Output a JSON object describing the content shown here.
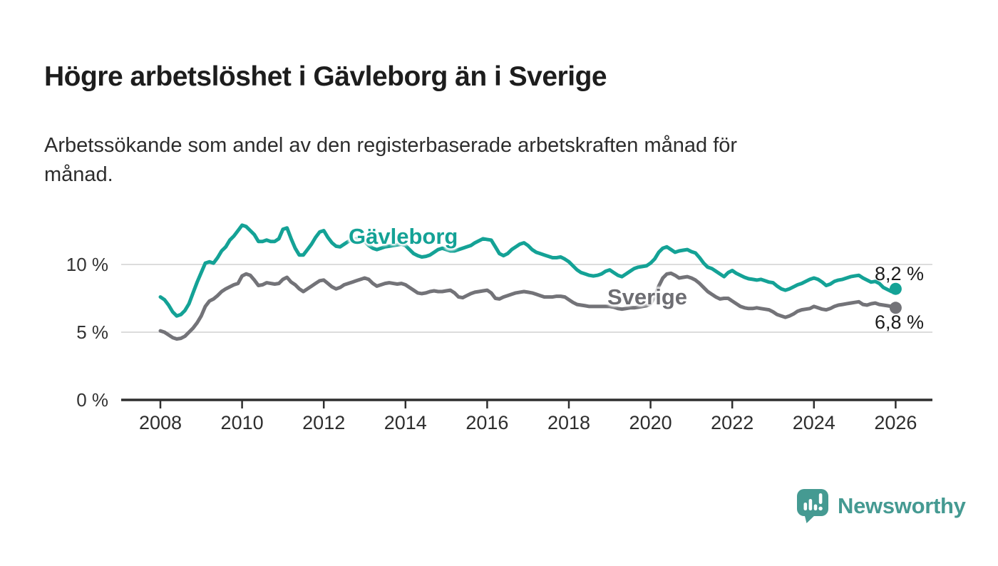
{
  "header": {
    "title": "Högre arbetslöshet i Gävleborg än i Sverige",
    "subtitle_line1": "Arbetssökande som andel av den registerbaserade arbetskraften månad för",
    "subtitle_line2": "månad."
  },
  "chart_data": {
    "type": "line",
    "title": "Högre arbetslöshet i Gävleborg än i Sverige",
    "subtitle": "Arbetssökande som andel av den registerbaserade arbetskraften månad för månad.",
    "xlabel": "",
    "ylabel": "",
    "x_range": [
      2008,
      2026.3
    ],
    "y_range": [
      0,
      13.5
    ],
    "x_ticks": [
      2008,
      2010,
      2012,
      2014,
      2016,
      2018,
      2020,
      2022,
      2024,
      2026
    ],
    "y_ticks": [
      {
        "value": 0,
        "label": "0 %"
      },
      {
        "value": 5,
        "label": "5 %"
      },
      {
        "value": 10,
        "label": "10 %"
      }
    ],
    "grid": "horizontal gridlines at 5 % and 10 %, dark baseline at 0 %",
    "legend_position": "inline labels on lines, end-value labels at right",
    "series": [
      {
        "name": "Gävleborg",
        "color": "#14a296",
        "start": 2008,
        "step": 0.1,
        "end_value": 8.2,
        "end_label": "8,2 %",
        "values": [
          7.6,
          7.4,
          7.0,
          6.5,
          6.2,
          6.3,
          6.6,
          7.1,
          7.9,
          8.7,
          9.4,
          10.1,
          10.2,
          10.1,
          10.5,
          11.0,
          11.3,
          11.8,
          12.1,
          12.5,
          12.9,
          12.8,
          12.5,
          12.2,
          11.7,
          11.7,
          11.8,
          11.7,
          11.7,
          11.9,
          12.6,
          12.7,
          11.9,
          11.2,
          10.7,
          10.7,
          11.1,
          11.5,
          12.0,
          12.4,
          12.5,
          12.0,
          11.6,
          11.35,
          11.3,
          11.5,
          11.7,
          11.8,
          11.9,
          11.85,
          11.7,
          11.4,
          11.2,
          11.1,
          11.2,
          11.3,
          11.35,
          11.4,
          11.45,
          11.5,
          11.4,
          11.1,
          10.8,
          10.65,
          10.55,
          10.6,
          10.7,
          10.9,
          11.1,
          11.2,
          11.1,
          11.0,
          11.0,
          11.1,
          11.2,
          11.3,
          11.4,
          11.6,
          11.75,
          11.9,
          11.85,
          11.8,
          11.3,
          10.8,
          10.65,
          10.8,
          11.1,
          11.3,
          11.5,
          11.6,
          11.4,
          11.1,
          10.9,
          10.8,
          10.7,
          10.6,
          10.5,
          10.5,
          10.55,
          10.4,
          10.2,
          9.9,
          9.6,
          9.4,
          9.3,
          9.2,
          9.15,
          9.2,
          9.3,
          9.5,
          9.6,
          9.4,
          9.2,
          9.1,
          9.3,
          9.5,
          9.7,
          9.8,
          9.85,
          9.9,
          10.1,
          10.4,
          10.9,
          11.2,
          11.3,
          11.1,
          10.9,
          11.0,
          11.05,
          11.1,
          10.95,
          10.85,
          10.5,
          10.1,
          9.8,
          9.7,
          9.5,
          9.3,
          9.1,
          9.4,
          9.55,
          9.35,
          9.2,
          9.05,
          8.95,
          8.9,
          8.85,
          8.9,
          8.8,
          8.7,
          8.65,
          8.4,
          8.2,
          8.1,
          8.2,
          8.35,
          8.5,
          8.6,
          8.75,
          8.9,
          9.0,
          8.9,
          8.7,
          8.45,
          8.55,
          8.75,
          8.85,
          8.9,
          9.0,
          9.1,
          9.15,
          9.2,
          9.0,
          8.85,
          8.7,
          8.75,
          8.6,
          8.3,
          8.15,
          8.0,
          8.2
        ]
      },
      {
        "name": "Sverige",
        "color": "#737378",
        "start": 2008,
        "step": 0.1,
        "end_value": 6.8,
        "end_label": "6,8 %",
        "values": [
          5.1,
          5.0,
          4.8,
          4.6,
          4.5,
          4.55,
          4.7,
          5.0,
          5.3,
          5.7,
          6.2,
          6.9,
          7.3,
          7.45,
          7.7,
          8.0,
          8.2,
          8.35,
          8.5,
          8.6,
          9.15,
          9.3,
          9.2,
          8.85,
          8.45,
          8.5,
          8.65,
          8.6,
          8.55,
          8.6,
          8.9,
          9.05,
          8.7,
          8.5,
          8.2,
          8.0,
          8.2,
          8.4,
          8.6,
          8.8,
          8.85,
          8.6,
          8.35,
          8.2,
          8.3,
          8.5,
          8.6,
          8.7,
          8.8,
          8.9,
          9.0,
          8.9,
          8.6,
          8.4,
          8.5,
          8.6,
          8.65,
          8.6,
          8.55,
          8.6,
          8.5,
          8.3,
          8.1,
          7.9,
          7.85,
          7.9,
          8.0,
          8.05,
          8.0,
          8.0,
          8.05,
          8.1,
          7.9,
          7.6,
          7.55,
          7.7,
          7.85,
          7.95,
          8.0,
          8.05,
          8.1,
          7.9,
          7.5,
          7.45,
          7.6,
          7.7,
          7.8,
          7.9,
          7.95,
          8.0,
          7.95,
          7.9,
          7.8,
          7.7,
          7.6,
          7.6,
          7.6,
          7.65,
          7.65,
          7.6,
          7.4,
          7.2,
          7.05,
          7.0,
          6.95,
          6.9,
          6.9,
          6.9,
          6.9,
          6.9,
          6.9,
          6.85,
          6.75,
          6.7,
          6.75,
          6.8,
          6.8,
          6.85,
          6.9,
          6.95,
          7.1,
          7.6,
          8.4,
          9.0,
          9.3,
          9.35,
          9.2,
          9.0,
          9.05,
          9.1,
          9.0,
          8.85,
          8.6,
          8.3,
          8.0,
          7.8,
          7.6,
          7.45,
          7.5,
          7.5,
          7.3,
          7.1,
          6.9,
          6.8,
          6.75,
          6.75,
          6.8,
          6.75,
          6.7,
          6.65,
          6.5,
          6.3,
          6.2,
          6.1,
          6.2,
          6.35,
          6.55,
          6.65,
          6.7,
          6.75,
          6.9,
          6.8,
          6.7,
          6.65,
          6.75,
          6.9,
          7.0,
          7.05,
          7.1,
          7.15,
          7.2,
          7.25,
          7.05,
          7.0,
          7.1,
          7.15,
          7.05,
          7.0,
          6.95,
          6.9,
          6.8
        ]
      }
    ]
  },
  "footer": {
    "brand": "Newsworthy",
    "brand_color": "#459a92",
    "logo_icon": "speech-bubble-with-bar-chart-and-exclamation"
  },
  "colors": {
    "background": "#ffffff",
    "title_text": "#1d1d1d",
    "subtitle_text": "#2d2d2d",
    "axis_line": "#2f2f2f",
    "gridline": "#dcdcdc",
    "tick_label": "#333333",
    "gavleborg_line": "#14a296",
    "sverige_line": "#737378"
  }
}
